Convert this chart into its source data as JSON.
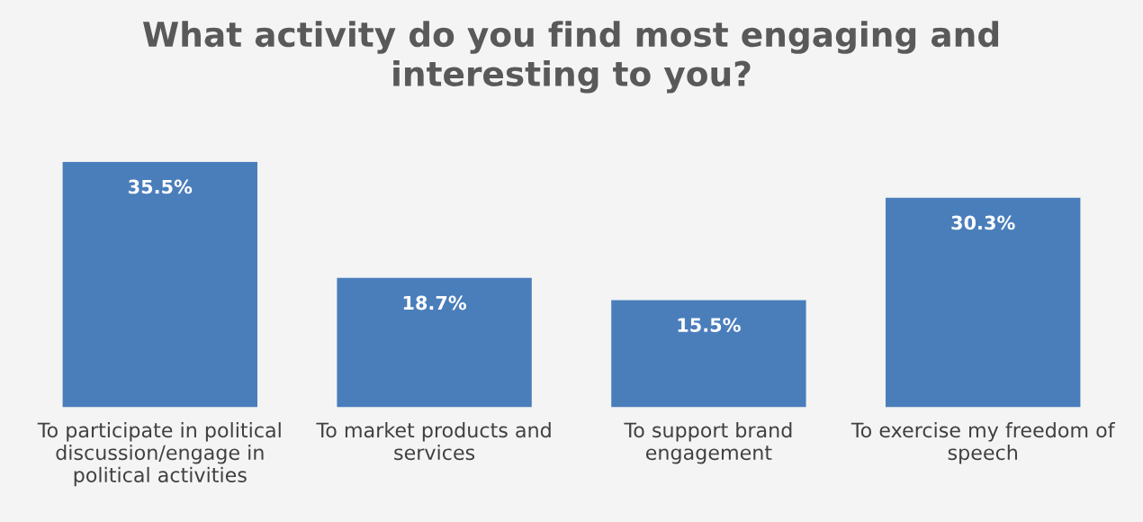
{
  "chart_data": {
    "type": "bar",
    "title": "What activity do you find most engaging and\ninteresting to you?",
    "categories": [
      "To participate in political\ndiscussion/engage in\npolitical activities",
      "To market products and\nservices",
      "To support brand\nengagement",
      "To exercise my freedom of\nspeech"
    ],
    "values": [
      35.5,
      18.7,
      15.5,
      30.3
    ],
    "value_labels": [
      "35.5%",
      "18.7%",
      "15.5%",
      "30.3%"
    ],
    "color": "#4a7ebb"
  }
}
